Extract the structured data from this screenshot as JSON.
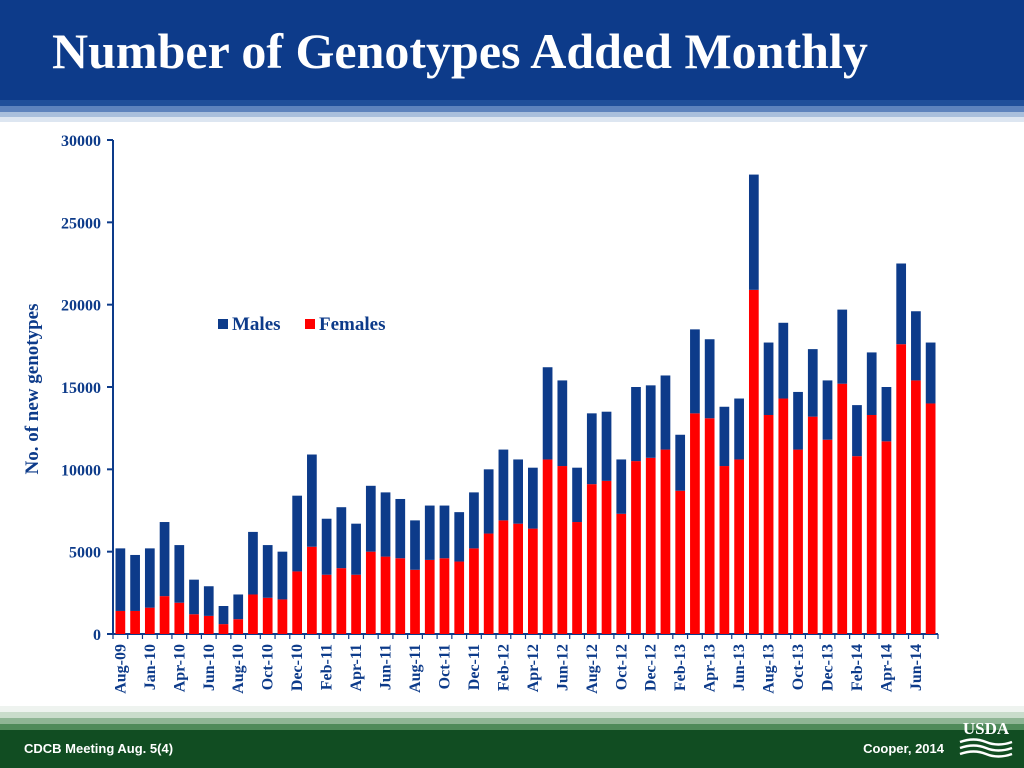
{
  "slide": {
    "title": "Number of Genotypes Added Monthly",
    "footer_left": "CDCB Meeting Aug. 5(4)",
    "footer_right": "Cooper, 2014",
    "logo_text": "USDA"
  },
  "colors": {
    "males": "#0d3b8a",
    "females": "#ff0000",
    "header": "#0d3b8a",
    "footer": "#114d22"
  },
  "chart_data": {
    "type": "bar",
    "stacked": true,
    "title": "",
    "xlabel": "",
    "ylabel": "No. of new genotypes",
    "ylim": [
      0,
      30000
    ],
    "yticks": [
      0,
      5000,
      10000,
      15000,
      20000,
      25000,
      30000
    ],
    "legend_position": "top-left",
    "x_tick_labels": [
      "Aug-09",
      "Jan-10",
      "Apr-10",
      "Jun-10",
      "Aug-10",
      "Oct-10",
      "Dec-10",
      "Feb-11",
      "Apr-11",
      "Jun-11",
      "Aug-11",
      "Oct-11",
      "Dec-11",
      "Feb-12",
      "Apr-12",
      "Jun-12",
      "Aug-12",
      "Oct-12",
      "Dec-12",
      "Feb-13",
      "Apr-13",
      "Jun-13",
      "Aug-13",
      "Oct-13",
      "Dec-13",
      "Feb-14",
      "Apr-14",
      "Jun-14"
    ],
    "x_tick_positions": [
      0,
      2,
      4,
      6,
      8,
      10,
      12,
      14,
      16,
      18,
      20,
      22,
      24,
      26,
      28,
      30,
      32,
      34,
      36,
      38,
      40,
      42,
      44,
      46,
      48,
      50,
      52,
      54
    ],
    "series": [
      {
        "name": "Females",
        "values": [
          1400,
          1400,
          1600,
          2300,
          1900,
          1200,
          1100,
          600,
          900,
          2400,
          2200,
          2100,
          3800,
          5300,
          3600,
          4000,
          3600,
          5000,
          4700,
          4600,
          3900,
          4500,
          4600,
          4400,
          5200,
          6100,
          6900,
          6700,
          6400,
          10600,
          10200,
          6800,
          9100,
          9300,
          7300,
          10500,
          10700,
          11200,
          8700,
          13400,
          13100,
          10200,
          10600,
          20900,
          13300,
          14300,
          11200,
          13200,
          11800,
          15200,
          10800,
          13300,
          11700,
          17600,
          15400,
          14000
        ]
      },
      {
        "name": "Males",
        "values": [
          3800,
          3400,
          3600,
          4500,
          3500,
          2100,
          1800,
          1100,
          1500,
          3800,
          3200,
          2900,
          4600,
          5600,
          3400,
          3700,
          3100,
          4000,
          3900,
          3600,
          3000,
          3300,
          3200,
          3000,
          3400,
          3900,
          4300,
          3900,
          3700,
          5600,
          5200,
          3300,
          4300,
          4200,
          3300,
          4500,
          4400,
          4500,
          3400,
          5100,
          4800,
          3600,
          3700,
          7000,
          4400,
          4600,
          3500,
          4100,
          3600,
          4500,
          3100,
          3800,
          3300,
          4900,
          4200,
          3700
        ]
      }
    ]
  }
}
